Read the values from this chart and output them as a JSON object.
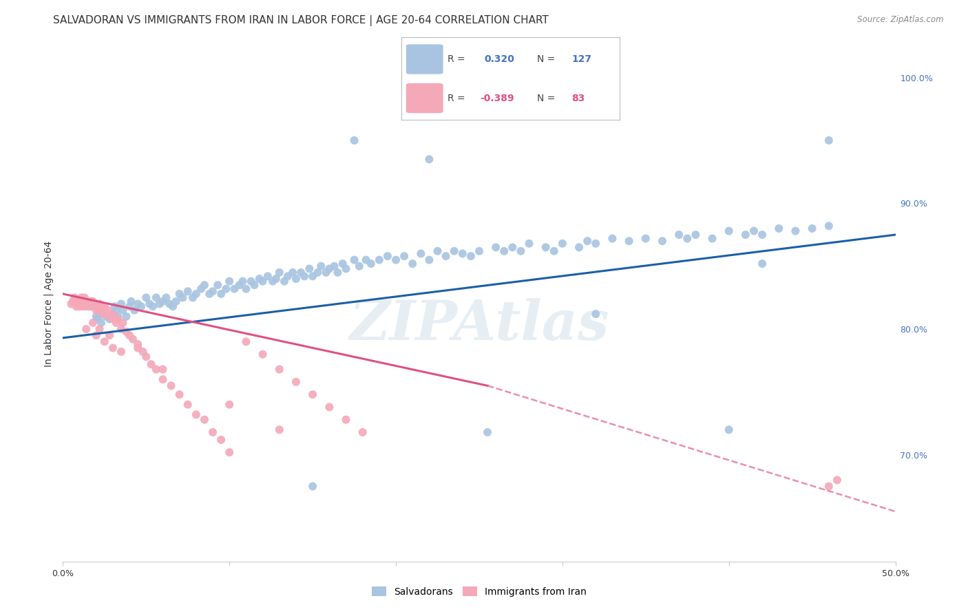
{
  "title": "SALVADORAN VS IMMIGRANTS FROM IRAN IN LABOR FORCE | AGE 20-64 CORRELATION CHART",
  "source": "Source: ZipAtlas.com",
  "ylabel": "In Labor Force | Age 20-64",
  "x_min": 0.0,
  "x_max": 0.5,
  "y_min": 0.615,
  "y_max": 1.025,
  "y_tick_labels_right": [
    "100.0%",
    "90.0%",
    "80.0%",
    "70.0%"
  ],
  "y_tick_vals_right": [
    1.0,
    0.9,
    0.8,
    0.7
  ],
  "blue_color": "#a8c4e0",
  "pink_color": "#f4a8b8",
  "blue_line_color": "#1a5fa8",
  "pink_line_color": "#e05080",
  "watermark": "ZIPAtlas",
  "blue_line": {
    "x0": 0.0,
    "x1": 0.5,
    "y0": 0.793,
    "y1": 0.875
  },
  "pink_line_solid": {
    "x0": 0.0,
    "x1": 0.255,
    "y0": 0.828,
    "y1": 0.755
  },
  "pink_line_dashed": {
    "x0": 0.255,
    "x1": 0.5,
    "y0": 0.755,
    "y1": 0.655
  },
  "background_color": "#ffffff",
  "grid_color": "#c8c8d0",
  "title_fontsize": 11,
  "axis_fontsize": 10,
  "tick_fontsize": 9,
  "blue_scatter_x": [
    0.02,
    0.021,
    0.022,
    0.023,
    0.025,
    0.026,
    0.028,
    0.03,
    0.031,
    0.032,
    0.033,
    0.035,
    0.036,
    0.038,
    0.04,
    0.041,
    0.043,
    0.045,
    0.047,
    0.05,
    0.052,
    0.054,
    0.056,
    0.058,
    0.06,
    0.062,
    0.064,
    0.066,
    0.068,
    0.07,
    0.072,
    0.075,
    0.078,
    0.08,
    0.083,
    0.085,
    0.088,
    0.09,
    0.093,
    0.095,
    0.098,
    0.1,
    0.103,
    0.106,
    0.108,
    0.11,
    0.113,
    0.115,
    0.118,
    0.12,
    0.123,
    0.126,
    0.128,
    0.13,
    0.133,
    0.135,
    0.138,
    0.14,
    0.143,
    0.145,
    0.148,
    0.15,
    0.153,
    0.155,
    0.158,
    0.16,
    0.163,
    0.165,
    0.168,
    0.17,
    0.175,
    0.178,
    0.182,
    0.185,
    0.19,
    0.195,
    0.2,
    0.205,
    0.21,
    0.215,
    0.22,
    0.225,
    0.23,
    0.235,
    0.24,
    0.245,
    0.25,
    0.26,
    0.265,
    0.27,
    0.275,
    0.28,
    0.29,
    0.295,
    0.3,
    0.31,
    0.315,
    0.32,
    0.33,
    0.34,
    0.35,
    0.36,
    0.37,
    0.375,
    0.38,
    0.39,
    0.4,
    0.41,
    0.415,
    0.42,
    0.43,
    0.44,
    0.45,
    0.46,
    0.175,
    0.22,
    0.32,
    0.42,
    0.46,
    0.255,
    0.15,
    0.4
  ],
  "blue_scatter_y": [
    0.81,
    0.808,
    0.812,
    0.805,
    0.815,
    0.81,
    0.808,
    0.812,
    0.818,
    0.815,
    0.81,
    0.82,
    0.815,
    0.81,
    0.818,
    0.822,
    0.815,
    0.82,
    0.818,
    0.825,
    0.82,
    0.818,
    0.825,
    0.82,
    0.822,
    0.825,
    0.82,
    0.818,
    0.822,
    0.828,
    0.825,
    0.83,
    0.825,
    0.828,
    0.832,
    0.835,
    0.828,
    0.83,
    0.835,
    0.828,
    0.832,
    0.838,
    0.832,
    0.835,
    0.838,
    0.832,
    0.838,
    0.835,
    0.84,
    0.838,
    0.842,
    0.838,
    0.84,
    0.845,
    0.838,
    0.842,
    0.845,
    0.84,
    0.845,
    0.842,
    0.848,
    0.842,
    0.845,
    0.85,
    0.845,
    0.848,
    0.85,
    0.845,
    0.852,
    0.848,
    0.855,
    0.85,
    0.855,
    0.852,
    0.855,
    0.858,
    0.855,
    0.858,
    0.852,
    0.86,
    0.855,
    0.862,
    0.858,
    0.862,
    0.86,
    0.858,
    0.862,
    0.865,
    0.862,
    0.865,
    0.862,
    0.868,
    0.865,
    0.862,
    0.868,
    0.865,
    0.87,
    0.868,
    0.872,
    0.87,
    0.872,
    0.87,
    0.875,
    0.872,
    0.875,
    0.872,
    0.878,
    0.875,
    0.878,
    0.875,
    0.88,
    0.878,
    0.88,
    0.882,
    0.95,
    0.935,
    0.812,
    0.852,
    0.95,
    0.718,
    0.675,
    0.72
  ],
  "pink_scatter_x": [
    0.005,
    0.006,
    0.007,
    0.008,
    0.008,
    0.009,
    0.01,
    0.01,
    0.011,
    0.011,
    0.012,
    0.012,
    0.013,
    0.013,
    0.014,
    0.014,
    0.015,
    0.015,
    0.016,
    0.016,
    0.017,
    0.017,
    0.018,
    0.018,
    0.019,
    0.02,
    0.02,
    0.021,
    0.022,
    0.022,
    0.023,
    0.024,
    0.025,
    0.025,
    0.026,
    0.027,
    0.028,
    0.029,
    0.03,
    0.031,
    0.032,
    0.033,
    0.035,
    0.036,
    0.038,
    0.04,
    0.042,
    0.045,
    0.048,
    0.05,
    0.053,
    0.056,
    0.06,
    0.065,
    0.07,
    0.075,
    0.08,
    0.085,
    0.09,
    0.095,
    0.1,
    0.11,
    0.12,
    0.13,
    0.14,
    0.15,
    0.16,
    0.17,
    0.18,
    0.014,
    0.02,
    0.025,
    0.03,
    0.035,
    0.018,
    0.022,
    0.028,
    0.045,
    0.06,
    0.1,
    0.13,
    0.46,
    0.465
  ],
  "pink_scatter_y": [
    0.82,
    0.822,
    0.825,
    0.818,
    0.822,
    0.82,
    0.822,
    0.818,
    0.82,
    0.825,
    0.818,
    0.822,
    0.82,
    0.825,
    0.818,
    0.822,
    0.82,
    0.822,
    0.818,
    0.82,
    0.822,
    0.818,
    0.82,
    0.822,
    0.818,
    0.815,
    0.82,
    0.818,
    0.815,
    0.82,
    0.818,
    0.812,
    0.815,
    0.818,
    0.812,
    0.815,
    0.81,
    0.812,
    0.808,
    0.81,
    0.805,
    0.808,
    0.8,
    0.805,
    0.798,
    0.795,
    0.792,
    0.788,
    0.782,
    0.778,
    0.772,
    0.768,
    0.76,
    0.755,
    0.748,
    0.74,
    0.732,
    0.728,
    0.718,
    0.712,
    0.702,
    0.79,
    0.78,
    0.768,
    0.758,
    0.748,
    0.738,
    0.728,
    0.718,
    0.8,
    0.795,
    0.79,
    0.785,
    0.782,
    0.805,
    0.8,
    0.795,
    0.785,
    0.768,
    0.74,
    0.72,
    0.675,
    0.68
  ]
}
